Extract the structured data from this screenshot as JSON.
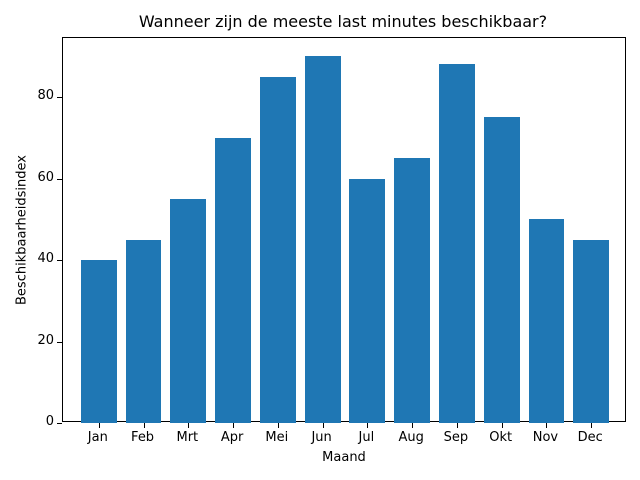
{
  "chart_data": {
    "type": "bar",
    "title": "Wanneer zijn de meeste last minutes beschikbaar?",
    "xlabel": "Maand",
    "ylabel": "Beschikbaarheidsindex",
    "categories": [
      "Jan",
      "Feb",
      "Mrt",
      "Apr",
      "Mei",
      "Jun",
      "Jul",
      "Aug",
      "Sep",
      "Okt",
      "Nov",
      "Dec"
    ],
    "values": [
      40,
      45,
      55,
      70,
      85,
      90,
      60,
      65,
      88,
      75,
      50,
      45
    ],
    "ylim": [
      0,
      94.5
    ],
    "yticks": [
      0,
      20,
      40,
      60,
      80
    ],
    "grid": false,
    "bar_color": "#1f77b4"
  }
}
